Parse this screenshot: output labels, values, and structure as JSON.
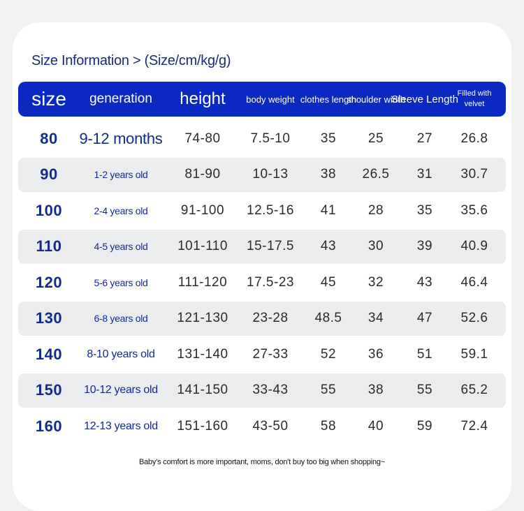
{
  "header": {
    "title": "Size Information > (Size/cm/kg/g)"
  },
  "table": {
    "columns": [
      "size",
      "generation",
      "height",
      "body weight",
      "clothes length",
      "shoulder width",
      "Sleeve Length",
      "Filled with velvet"
    ],
    "rows": [
      [
        "80",
        "9-12 months",
        "74-80",
        "7.5-10",
        "35",
        "25",
        "27",
        "26.8"
      ],
      [
        "90",
        "1-2 years old",
        "81-90",
        "10-13",
        "38",
        "26.5",
        "31",
        "30.7"
      ],
      [
        "100",
        "2-4 years old",
        "91-100",
        "12.5-16",
        "41",
        "28",
        "35",
        "35.6"
      ],
      [
        "110",
        "4-5 years old",
        "101-110",
        "15-17.5",
        "43",
        "30",
        "39",
        "40.9"
      ],
      [
        "120",
        "5-6 years old",
        "111-120",
        "17.5-23",
        "45",
        "32",
        "43",
        "46.4"
      ],
      [
        "130",
        "6-8 years old",
        "121-130",
        "23-28",
        "48.5",
        "34",
        "47",
        "52.6"
      ],
      [
        "140",
        "8-10 years old",
        "131-140",
        "27-33",
        "52",
        "36",
        "51",
        "59.1"
      ],
      [
        "150",
        "10-12 years old",
        "141-150",
        "33-43",
        "55",
        "38",
        "55",
        "65.2"
      ],
      [
        "160",
        "12-13 years old",
        "151-160",
        "43-50",
        "58",
        "40",
        "59",
        "72.4"
      ]
    ]
  },
  "footer": {
    "note": "Baby's comfort is more important, moms, don't buy too big when shopping~"
  }
}
